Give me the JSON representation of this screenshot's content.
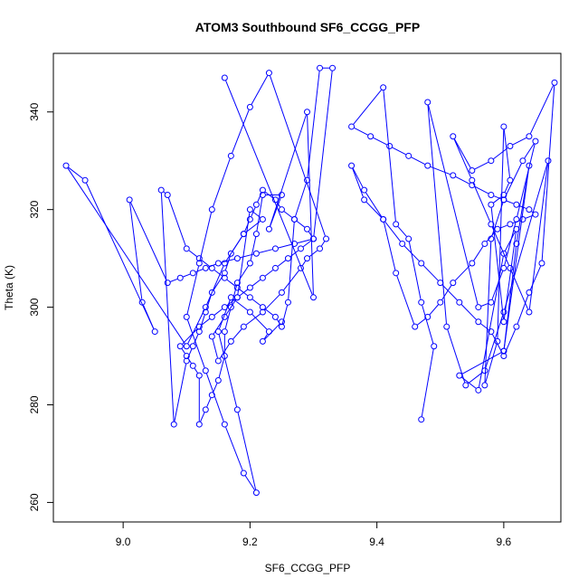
{
  "chart_data": {
    "type": "line",
    "title": "ATOM3 Southbound SF6_CCGG_PFP",
    "xlabel": "SF6_CCGG_PFP",
    "ylabel": "Theta (K)",
    "xlim": [
      8.89,
      9.69
    ],
    "ylim": [
      256,
      352
    ],
    "xticks": [
      9.0,
      9.2,
      9.4,
      9.6
    ],
    "xtick_labels": [
      "9.0",
      "9.2",
      "9.4",
      "9.6"
    ],
    "yticks": [
      260,
      280,
      300,
      320,
      340
    ],
    "ytick_labels": [
      "260",
      "280",
      "300",
      "320",
      "340"
    ],
    "grid": false,
    "legend": "none",
    "colors": {
      "series": "#0000ff",
      "axes": "#000000"
    },
    "series": [
      {
        "x": [
          9.16,
          9.3,
          9.29,
          9.23,
          9.25,
          9.22,
          9.21,
          9.2,
          9.18,
          9.17,
          9.16,
          9.16,
          9.15,
          9.14,
          9.13,
          9.12,
          9.12,
          9.11,
          9.1,
          9.09,
          9.12,
          9.14,
          9.16,
          9.18,
          9.2,
          9.22,
          9.24,
          9.26,
          9.28,
          9.3,
          9.29,
          9.27,
          9.25,
          9.24,
          9.22,
          9.21,
          9.2,
          9.19,
          9.17,
          9.16,
          9.14,
          9.13,
          9.12,
          9.11,
          9.1,
          9.08,
          9.06,
          9.07,
          9.1,
          9.12,
          9.14,
          9.16,
          9.18,
          9.2,
          9.22,
          9.24,
          9.25,
          9.26,
          9.27,
          9.29,
          9.31,
          9.33,
          9.3,
          9.27,
          9.24,
          9.21,
          9.18,
          9.15,
          9.13,
          9.11,
          9.09,
          9.07,
          9.01,
          9.03,
          9.05,
          8.94,
          8.91,
          9.1,
          9.13,
          9.16,
          9.19,
          9.22,
          9.2,
          9.18,
          9.16,
          9.14,
          9.15,
          9.17,
          9.19,
          9.22,
          9.25,
          9.28,
          9.29,
          9.31,
          9.32,
          9.23,
          9.2,
          9.17,
          9.14,
          9.12,
          9.1,
          9.13,
          9.16,
          9.19,
          9.21,
          9.18,
          9.15,
          9.17,
          9.2,
          9.23,
          9.22,
          9.25
        ],
        "y": [
          347,
          302,
          340,
          316,
          323,
          323,
          315,
          309,
          305,
          300,
          295,
          290,
          285,
          282,
          279,
          276,
          286,
          288,
          290,
          292,
          296,
          298,
          300,
          302,
          304,
          306,
          308,
          310,
          312,
          314,
          316,
          318,
          320,
          322,
          324,
          321,
          318,
          315,
          311,
          307,
          303,
          299,
          295,
          292,
          289,
          276,
          324,
          323,
          312,
          310,
          308,
          306,
          304,
          302,
          300,
          298,
          296,
          301,
          318,
          326,
          349,
          349,
          314,
          313,
          312,
          311,
          310,
          309,
          308,
          307,
          306,
          305,
          322,
          301,
          295,
          326,
          329,
          292,
          300,
          309,
          315,
          318,
          320,
          302,
          298,
          294,
          289,
          293,
          296,
          299,
          303,
          308,
          310,
          312,
          314,
          348,
          341,
          331,
          320,
          309,
          298,
          287,
          276,
          266,
          262,
          279,
          295,
          302,
          299,
          295,
          293,
          297
        ]
      },
      {
        "x": [
          9.47,
          9.49,
          9.47,
          9.45,
          9.43,
          9.41,
          9.36,
          9.39,
          9.42,
          9.45,
          9.48,
          9.52,
          9.55,
          9.58,
          9.6,
          9.62,
          9.64,
          9.65,
          9.63,
          9.61,
          9.59,
          9.57,
          9.55,
          9.52,
          9.5,
          9.48,
          9.46,
          9.43,
          9.41,
          9.38,
          9.36,
          9.38,
          9.41,
          9.44,
          9.47,
          9.5,
          9.53,
          9.56,
          9.58,
          9.6,
          9.62,
          9.64,
          9.66,
          9.68,
          9.64,
          9.61,
          9.58,
          9.55,
          9.52,
          9.55,
          9.58,
          9.61,
          9.64,
          9.67,
          9.6,
          9.57,
          9.54,
          9.51,
          9.48,
          9.56,
          9.58,
          9.6,
          9.62,
          9.65,
          9.63,
          9.6,
          9.58,
          9.57,
          9.59,
          9.6,
          9.61,
          9.6,
          9.58,
          9.6,
          9.62,
          9.6,
          9.56,
          9.53,
          9.6,
          9.64,
          9.62,
          9.6
        ],
        "y": [
          277,
          292,
          301,
          314,
          317,
          345,
          337,
          335,
          333,
          331,
          329,
          327,
          325,
          323,
          322,
          321,
          320,
          319,
          318,
          317,
          316,
          313,
          309,
          305,
          301,
          298,
          296,
          307,
          318,
          322,
          329,
          324,
          318,
          313,
          309,
          305,
          301,
          297,
          295,
          290,
          296,
          303,
          309,
          346,
          335,
          333,
          330,
          328,
          335,
          326,
          317,
          308,
          299,
          330,
          299,
          287,
          284,
          296,
          342,
          300,
          301,
          308,
          318,
          334,
          330,
          322,
          314,
          284,
          293,
          337,
          326,
          323,
          321,
          297,
          316,
          311,
          283,
          286,
          291,
          329,
          313,
          291
        ]
      }
    ]
  }
}
